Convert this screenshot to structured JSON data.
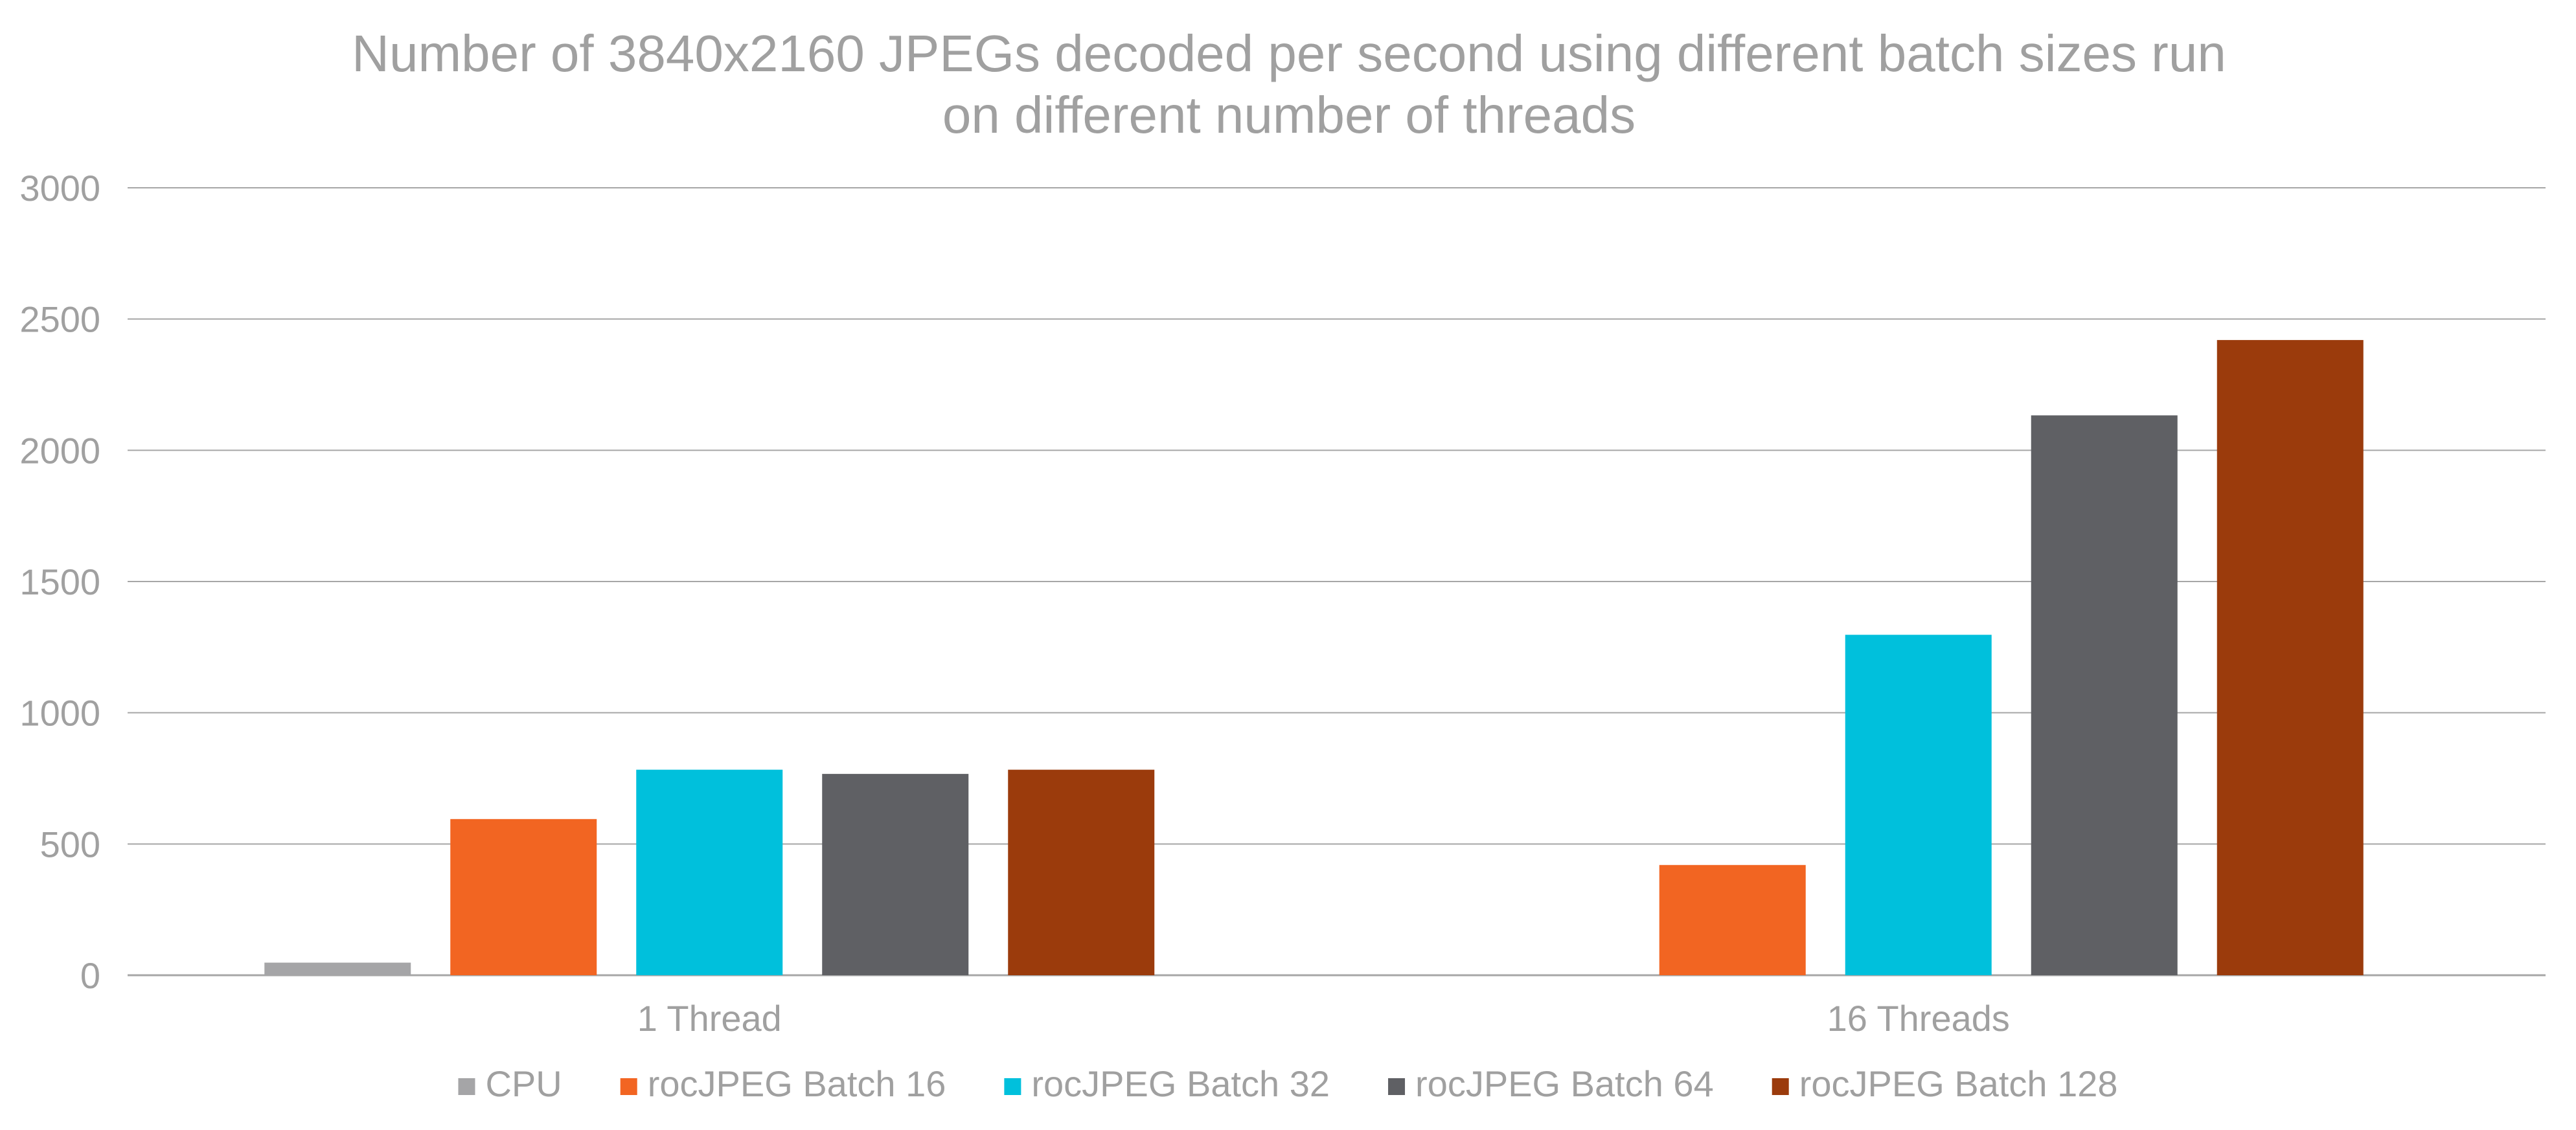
{
  "chart_data": {
    "type": "bar",
    "title_lines": [
      "Number of 3840x2160 JPEGs decoded per second using different batch sizes run",
      "on different number of threads"
    ],
    "categories": [
      "1 Thread",
      "16 Threads"
    ],
    "series": [
      {
        "name": "CPU",
        "values": [
          48,
          0
        ],
        "color": "#a5a5a7"
      },
      {
        "name": "rocJPEG Batch 16",
        "values": [
          595,
          420
        ],
        "color": "#f26522"
      },
      {
        "name": "rocJPEG Batch 32",
        "values": [
          783,
          1297
        ],
        "color": "#00c0dc"
      },
      {
        "name": "rocJPEG Batch 64",
        "values": [
          767,
          2133
        ],
        "color": "#5f6064"
      },
      {
        "name": "rocJPEG Batch 128",
        "values": [
          783,
          2420
        ],
        "color": "#9b3b0c"
      }
    ],
    "ylim": [
      0,
      3000
    ],
    "yticks": [
      "0",
      "500",
      "1000",
      "1500",
      "2000",
      "2500",
      "3000"
    ],
    "grid": true,
    "legend_position": "bottom",
    "colors": {
      "text": "#a0a0a0",
      "grid": "#a6a6a6"
    }
  }
}
